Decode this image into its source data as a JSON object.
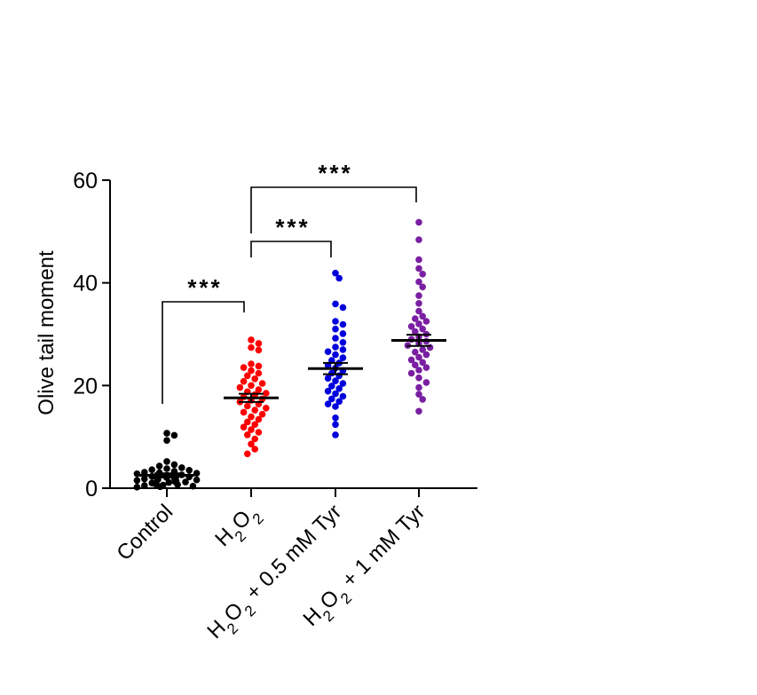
{
  "chart_data": {
    "type": "scatter",
    "subtype": "dot-plot-mean-sem",
    "ylabel": "Olive tail moment",
    "ylim": [
      0,
      60
    ],
    "yticks": [
      0,
      20,
      40,
      60
    ],
    "categories": [
      "Control",
      "H2O2",
      "H2O2 + 0.5 mM Tyr",
      "H2O2 + 1 mM Tyr"
    ],
    "series": [
      {
        "category": "Control",
        "color": "#000000",
        "mean": 2.5,
        "sem": 0.4,
        "values": [
          10.7,
          10.3,
          9.3,
          5.2,
          4.6,
          4.3,
          4.0,
          3.8,
          3.6,
          3.5,
          3.3,
          3.1,
          3.0,
          2.9,
          2.8,
          2.6,
          2.5,
          2.4,
          2.3,
          2.2,
          2.1,
          2.0,
          1.9,
          1.8,
          1.7,
          1.6,
          1.5,
          1.4,
          1.3,
          1.2,
          1.1,
          1.0,
          0.9,
          0.8,
          0.7,
          0.6,
          0.5,
          0.4,
          0.3,
          0.2
        ]
      },
      {
        "category": "H2O2",
        "color": "#ff0000",
        "mean": 17.6,
        "sem": 0.8,
        "values": [
          28.9,
          28.2,
          27.4,
          26.9,
          24.2,
          23.8,
          23.5,
          22.9,
          22.4,
          21.9,
          21.3,
          20.8,
          20.4,
          20.0,
          19.6,
          19.2,
          18.8,
          18.5,
          18.2,
          17.8,
          17.4,
          17.1,
          16.8,
          16.4,
          16.0,
          15.6,
          15.2,
          14.8,
          14.4,
          13.9,
          13.4,
          12.9,
          12.4,
          11.9,
          11.4,
          10.9,
          10.4,
          9.6,
          8.6,
          7.6,
          6.7
        ]
      },
      {
        "category": "H2O2 + 0.5 mM Tyr",
        "color": "#0000dd",
        "mean": 23.3,
        "sem": 1.1,
        "values": [
          41.9,
          40.9,
          35.9,
          35.2,
          32.5,
          31.9,
          31.0,
          30.1,
          29.2,
          28.4,
          27.5,
          27.0,
          26.6,
          26.0,
          25.4,
          24.9,
          24.4,
          23.9,
          23.4,
          22.9,
          22.4,
          21.9,
          21.4,
          20.9,
          20.4,
          19.9,
          19.4,
          18.9,
          18.4,
          17.9,
          17.4,
          16.9,
          16.4,
          15.9,
          13.7,
          12.4,
          10.4
        ]
      },
      {
        "category": "H2O2 + 1 mM Tyr",
        "color": "#7a1fa2",
        "mean": 28.8,
        "sem": 1.1,
        "values": [
          51.8,
          48.4,
          44.5,
          42.8,
          41.7,
          40.2,
          39.2,
          37.5,
          36.0,
          34.5,
          33.5,
          33.0,
          32.5,
          32.0,
          31.5,
          31.0,
          30.5,
          30.0,
          29.5,
          29.0,
          28.6,
          28.2,
          27.8,
          27.4,
          27.0,
          26.5,
          26.0,
          25.5,
          25.0,
          24.5,
          24.0,
          23.5,
          23.0,
          22.4,
          21.5,
          20.6,
          19.6,
          18.3,
          17.3,
          15.0
        ]
      }
    ],
    "significance": [
      {
        "from": 0,
        "to": 1,
        "label": "***"
      },
      {
        "from": 1,
        "to": 2,
        "label": "***"
      },
      {
        "from": 1,
        "to": 3,
        "label": "***"
      }
    ]
  }
}
